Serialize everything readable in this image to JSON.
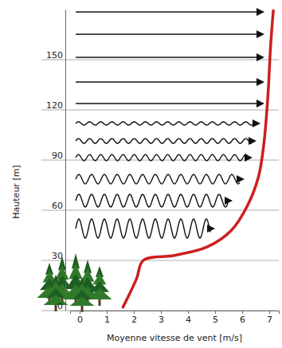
{
  "chart_data": {
    "type": "line",
    "x_label": "Moyenne vitesse de vent [m/s]",
    "y_label": "Hauteur [m]",
    "x": [
      1.6,
      2.1,
      2.35,
      3.5,
      4.7,
      5.6,
      6.2,
      6.6,
      6.8,
      6.95,
      7.05,
      7.15
    ],
    "values": [
      2,
      19,
      30,
      33,
      38,
      48,
      63,
      80,
      100,
      129,
      159,
      180
    ],
    "color": "#cc1f1f",
    "line_style": "solid",
    "xlim": [
      -0.35,
      7.35
    ],
    "xticks": [
      0,
      1,
      2,
      3,
      4,
      5,
      6,
      7
    ],
    "ylim": [
      0,
      180
    ],
    "yticks": [
      0,
      30,
      60,
      90,
      120,
      150
    ],
    "grid": true
  }
}
